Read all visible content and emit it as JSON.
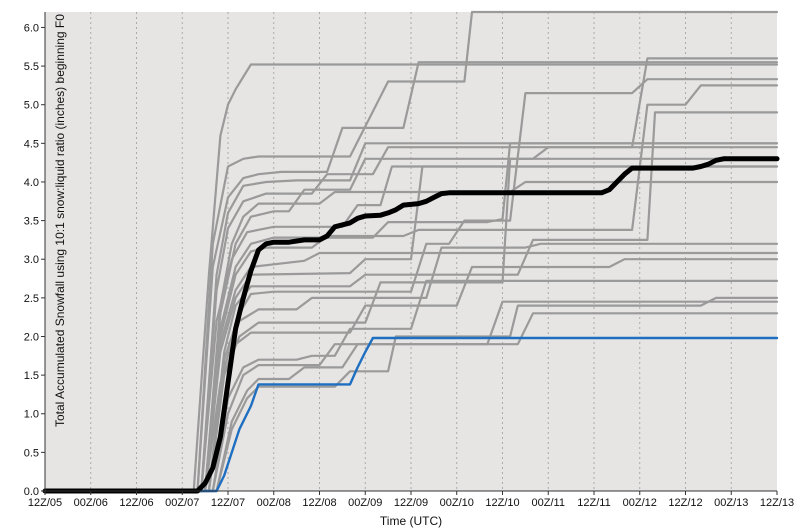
{
  "chart_data": {
    "type": "line",
    "xlabel": "Time (UTC)",
    "ylabel": "Total Accumulated Snowfall using 10:1 snow:liquid ratio (inches) beginning F0",
    "x_ticks": [
      "12Z/05",
      "00Z/06",
      "12Z/06",
      "00Z/07",
      "12Z/07",
      "00Z/08",
      "12Z/08",
      "00Z/09",
      "12Z/09",
      "00Z/10",
      "12Z/10",
      "00Z/11",
      "12Z/11",
      "00Z/12",
      "12Z/12",
      "00Z/13",
      "12Z/13"
    ],
    "x_range": [
      0,
      96
    ],
    "ylim": [
      0,
      6.2
    ],
    "y_ticks": [
      "0.0",
      "0.5",
      "1.0",
      "1.5",
      "2.0",
      "2.5",
      "3.0",
      "3.5",
      "4.0",
      "4.5",
      "5.0",
      "5.5",
      "6.0"
    ],
    "grid": "vertical dotted",
    "colors": {
      "background": "#e7e4e4",
      "members": "#9a9a9a",
      "mean": "#000000",
      "control": "#1f6fc1",
      "grid": "#aaaaaa"
    },
    "series": [
      {
        "role": "member",
        "points": [
          [
            0,
            0
          ],
          [
            19.5,
            0
          ],
          [
            21.5,
            2.8
          ],
          [
            23,
            4.6
          ],
          [
            24,
            5.0
          ],
          [
            25,
            5.2
          ],
          [
            27,
            5.52
          ],
          [
            93,
            5.52
          ],
          [
            96,
            5.52
          ]
        ]
      },
      {
        "role": "member",
        "points": [
          [
            0,
            0
          ],
          [
            20,
            0
          ],
          [
            22,
            3.2
          ],
          [
            24,
            4.2
          ],
          [
            26,
            4.3
          ],
          [
            28,
            4.33
          ],
          [
            40,
            4.33
          ],
          [
            45,
            5.3
          ],
          [
            55,
            5.3
          ],
          [
            56,
            6.2
          ],
          [
            96,
            6.2
          ]
        ]
      },
      {
        "role": "member",
        "points": [
          [
            0,
            0
          ],
          [
            20,
            0
          ],
          [
            22,
            2.9
          ],
          [
            24,
            3.8
          ],
          [
            26,
            4.05
          ],
          [
            28,
            4.1
          ],
          [
            31,
            4.13
          ],
          [
            37,
            4.13
          ],
          [
            39,
            4.7
          ],
          [
            47,
            4.7
          ],
          [
            49,
            5.55
          ],
          [
            96,
            5.55
          ]
        ]
      },
      {
        "role": "member",
        "points": [
          [
            0,
            0
          ],
          [
            20.5,
            0
          ],
          [
            22.5,
            2.8
          ],
          [
            24,
            3.6
          ],
          [
            26,
            3.95
          ],
          [
            29,
            4.0
          ],
          [
            33,
            4.02
          ],
          [
            40,
            4.02
          ],
          [
            42,
            4.5
          ],
          [
            49,
            4.5
          ],
          [
            96,
            4.5
          ]
        ]
      },
      {
        "role": "member",
        "points": [
          [
            0,
            0
          ],
          [
            20.5,
            0
          ],
          [
            22.5,
            2.6
          ],
          [
            24,
            3.4
          ],
          [
            26,
            3.75
          ],
          [
            29,
            3.85
          ],
          [
            35,
            3.85
          ],
          [
            37,
            4.1
          ],
          [
            43,
            4.1
          ],
          [
            45,
            4.45
          ],
          [
            77,
            4.45
          ],
          [
            79,
            5.6
          ],
          [
            96,
            5.6
          ]
        ]
      },
      {
        "role": "member",
        "points": [
          [
            0,
            0
          ],
          [
            21,
            0
          ],
          [
            23,
            2.4
          ],
          [
            24.5,
            3.2
          ],
          [
            26,
            3.55
          ],
          [
            28,
            3.72
          ],
          [
            36,
            3.72
          ],
          [
            38,
            3.87
          ],
          [
            61,
            3.87
          ],
          [
            63,
            4.0
          ],
          [
            96,
            4.0
          ]
        ]
      },
      {
        "role": "member",
        "points": [
          [
            0,
            0
          ],
          [
            21,
            0
          ],
          [
            23,
            2.3
          ],
          [
            25,
            3.2
          ],
          [
            27,
            3.55
          ],
          [
            30,
            3.62
          ],
          [
            32,
            3.62
          ],
          [
            34,
            3.9
          ],
          [
            40,
            3.9
          ],
          [
            42,
            4.3
          ],
          [
            50,
            4.3
          ],
          [
            96,
            4.3
          ]
        ]
      },
      {
        "role": "member",
        "points": [
          [
            0,
            0
          ],
          [
            20.5,
            0
          ],
          [
            22.5,
            2.2
          ],
          [
            24.5,
            3.0
          ],
          [
            26.5,
            3.35
          ],
          [
            30,
            3.42
          ],
          [
            39,
            3.42
          ],
          [
            41,
            3.7
          ],
          [
            44,
            3.7
          ],
          [
            45.5,
            4.2
          ],
          [
            96,
            4.2
          ]
        ]
      },
      {
        "role": "member",
        "points": [
          [
            0,
            0
          ],
          [
            21,
            0
          ],
          [
            23,
            2.1
          ],
          [
            25,
            2.9
          ],
          [
            27,
            3.2
          ],
          [
            30,
            3.28
          ],
          [
            43,
            3.28
          ],
          [
            45,
            3.48
          ],
          [
            58,
            3.48
          ],
          [
            60,
            3.52
          ],
          [
            61,
            4.5
          ],
          [
            96,
            4.5
          ]
        ]
      },
      {
        "role": "member",
        "points": [
          [
            0,
            0
          ],
          [
            21,
            0
          ],
          [
            23,
            2.0
          ],
          [
            25,
            2.8
          ],
          [
            27,
            3.1
          ],
          [
            29,
            3.15
          ],
          [
            35,
            3.15
          ],
          [
            37,
            3.3
          ],
          [
            47,
            3.3
          ],
          [
            49,
            3.38
          ],
          [
            77,
            3.38
          ],
          [
            79,
            5.0
          ],
          [
            84,
            5.0
          ],
          [
            86,
            5.25
          ],
          [
            96,
            5.25
          ]
        ]
      },
      {
        "role": "member",
        "points": [
          [
            0,
            0
          ],
          [
            21,
            0
          ],
          [
            23,
            1.9
          ],
          [
            25,
            2.6
          ],
          [
            27,
            2.9
          ],
          [
            34,
            2.98
          ],
          [
            36,
            3.08
          ],
          [
            96,
            3.08
          ]
        ]
      },
      {
        "role": "member",
        "points": [
          [
            0,
            0
          ],
          [
            21,
            0
          ],
          [
            23,
            1.8
          ],
          [
            25,
            2.5
          ],
          [
            27,
            2.8
          ],
          [
            40,
            2.82
          ],
          [
            42,
            3.0
          ],
          [
            48,
            3.0
          ],
          [
            49.5,
            4.2
          ],
          [
            96,
            4.2
          ]
        ]
      },
      {
        "role": "member",
        "points": [
          [
            0,
            0
          ],
          [
            21.5,
            0
          ],
          [
            23.5,
            1.8
          ],
          [
            25,
            2.4
          ],
          [
            27,
            2.65
          ],
          [
            40,
            2.65
          ],
          [
            42,
            2.8
          ],
          [
            62,
            2.8
          ],
          [
            64,
            3.25
          ],
          [
            79,
            3.25
          ],
          [
            80,
            4.9
          ],
          [
            96,
            4.9
          ]
        ]
      },
      {
        "role": "member",
        "points": [
          [
            0,
            0
          ],
          [
            21.5,
            0
          ],
          [
            23.5,
            1.7
          ],
          [
            25.5,
            2.3
          ],
          [
            27,
            2.55
          ],
          [
            30,
            2.58
          ],
          [
            48,
            2.58
          ],
          [
            50,
            3.2
          ],
          [
            53,
            3.2
          ],
          [
            55,
            3.5
          ],
          [
            61,
            3.5
          ],
          [
            63,
            5.15
          ],
          [
            77,
            5.15
          ],
          [
            79,
            5.33
          ],
          [
            96,
            5.33
          ]
        ]
      },
      {
        "role": "member",
        "points": [
          [
            0,
            0
          ],
          [
            21.5,
            0
          ],
          [
            23.5,
            1.6
          ],
          [
            25.5,
            2.2
          ],
          [
            28,
            2.35
          ],
          [
            33,
            2.35
          ],
          [
            35,
            2.5
          ],
          [
            50,
            2.5
          ],
          [
            52,
            3.15
          ],
          [
            63,
            3.15
          ],
          [
            65,
            3.2
          ],
          [
            96,
            3.2
          ]
        ]
      },
      {
        "role": "member",
        "points": [
          [
            0,
            0
          ],
          [
            21.5,
            0
          ],
          [
            23.5,
            1.5
          ],
          [
            25.5,
            2.0
          ],
          [
            28,
            2.18
          ],
          [
            42,
            2.18
          ],
          [
            44,
            2.7
          ],
          [
            60,
            2.7
          ],
          [
            61,
            4.3
          ],
          [
            64,
            4.3
          ],
          [
            66,
            4.45
          ],
          [
            96,
            4.45
          ]
        ]
      },
      {
        "role": "member",
        "points": [
          [
            0,
            0
          ],
          [
            21,
            0
          ],
          [
            23,
            1.4
          ],
          [
            25,
            1.9
          ],
          [
            27,
            2.05
          ],
          [
            40,
            2.05
          ],
          [
            42,
            2.4
          ],
          [
            54,
            2.4
          ],
          [
            56,
            2.9
          ],
          [
            74,
            2.9
          ],
          [
            76,
            3.0
          ],
          [
            96,
            3.0
          ]
        ]
      },
      {
        "role": "member",
        "points": [
          [
            0,
            0
          ],
          [
            22,
            0
          ],
          [
            24,
            1.2
          ],
          [
            26,
            1.6
          ],
          [
            28,
            1.7
          ],
          [
            33,
            1.7
          ],
          [
            35,
            1.75
          ],
          [
            38,
            1.75
          ],
          [
            40,
            2.1
          ],
          [
            48,
            2.1
          ],
          [
            50,
            2.72
          ],
          [
            96,
            2.72
          ]
        ]
      },
      {
        "role": "member",
        "points": [
          [
            0,
            0
          ],
          [
            22,
            0
          ],
          [
            24,
            1.0
          ],
          [
            26,
            1.5
          ],
          [
            28,
            1.63
          ],
          [
            36,
            1.63
          ],
          [
            38,
            1.9
          ],
          [
            62,
            1.9
          ],
          [
            64,
            2.3
          ],
          [
            94,
            2.3
          ],
          [
            96,
            2.3
          ]
        ]
      },
      {
        "role": "member",
        "points": [
          [
            0,
            0
          ],
          [
            22.5,
            0
          ],
          [
            24.5,
            0.9
          ],
          [
            26.5,
            1.3
          ],
          [
            28,
            1.45
          ],
          [
            32,
            1.45
          ],
          [
            34,
            1.6
          ],
          [
            39,
            1.6
          ],
          [
            41,
            1.9
          ],
          [
            58,
            1.9
          ],
          [
            60,
            2.45
          ],
          [
            96,
            2.45
          ]
        ]
      },
      {
        "role": "member",
        "points": [
          [
            0,
            0
          ],
          [
            22.5,
            0
          ],
          [
            24.5,
            0.8
          ],
          [
            26.5,
            1.2
          ],
          [
            28,
            1.35
          ],
          [
            38,
            1.35
          ],
          [
            40,
            1.55
          ],
          [
            45,
            1.55
          ],
          [
            46,
            2.0
          ],
          [
            61,
            2.0
          ],
          [
            62,
            2.4
          ],
          [
            86,
            2.4
          ],
          [
            88,
            2.5
          ],
          [
            96,
            2.5
          ]
        ]
      },
      {
        "role": "control",
        "points": [
          [
            0,
            0
          ],
          [
            22.5,
            0
          ],
          [
            23.5,
            0.2
          ],
          [
            24.5,
            0.5
          ],
          [
            25.5,
            0.8
          ],
          [
            27,
            1.1
          ],
          [
            28,
            1.38
          ],
          [
            40,
            1.38
          ],
          [
            41,
            1.6
          ],
          [
            42,
            1.8
          ],
          [
            43,
            1.98
          ],
          [
            96,
            1.98
          ]
        ]
      },
      {
        "role": "mean",
        "points": [
          [
            0,
            0
          ],
          [
            20,
            0
          ],
          [
            21,
            0.1
          ],
          [
            22,
            0.3
          ],
          [
            23,
            0.7
          ],
          [
            24,
            1.4
          ],
          [
            25,
            2.1
          ],
          [
            26,
            2.5
          ],
          [
            27,
            2.85
          ],
          [
            28,
            3.12
          ],
          [
            29,
            3.2
          ],
          [
            30,
            3.22
          ],
          [
            32,
            3.22
          ],
          [
            34,
            3.25
          ],
          [
            36,
            3.25
          ],
          [
            37,
            3.3
          ],
          [
            38,
            3.42
          ],
          [
            40,
            3.47
          ],
          [
            41,
            3.53
          ],
          [
            42,
            3.56
          ],
          [
            44,
            3.57
          ],
          [
            45,
            3.6
          ],
          [
            46,
            3.64
          ],
          [
            47,
            3.7
          ],
          [
            49,
            3.72
          ],
          [
            50,
            3.75
          ],
          [
            51,
            3.8
          ],
          [
            52,
            3.85
          ],
          [
            53,
            3.86
          ],
          [
            73,
            3.86
          ],
          [
            74,
            3.9
          ],
          [
            75,
            4.0
          ],
          [
            76,
            4.1
          ],
          [
            77,
            4.18
          ],
          [
            85,
            4.18
          ],
          [
            86,
            4.2
          ],
          [
            87,
            4.23
          ],
          [
            88,
            4.28
          ],
          [
            89,
            4.3
          ],
          [
            96,
            4.3
          ]
        ]
      }
    ]
  }
}
